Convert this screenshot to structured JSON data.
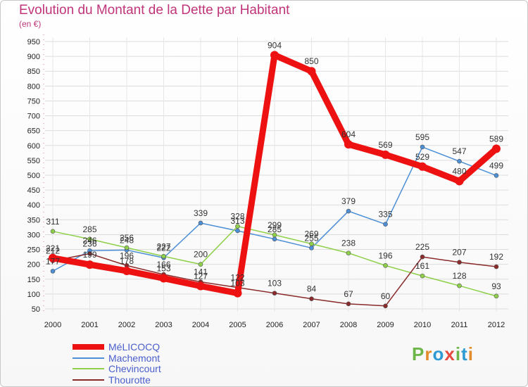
{
  "title": "Evolution du Montant de la Dette par Habitant",
  "subtitle": "(en €)",
  "logo": [
    "P",
    "r",
    "o",
    "x",
    "i",
    "t",
    "i"
  ],
  "logo_colors": [
    "#6fb64a",
    "#e38c2c",
    "#2e9ad4",
    "#e64a3e",
    "#6fb64a",
    "#2e9ad4",
    "#e38c2c"
  ],
  "chart_data": {
    "type": "line",
    "title": "Evolution du Montant de la Dette par Habitant",
    "ylabel": "(en €)",
    "xlabel": "",
    "categories": [
      "2000",
      "2001",
      "2002",
      "2003",
      "2004",
      "2005",
      "2006",
      "2007",
      "2008",
      "2009",
      "2010",
      "2011",
      "2012"
    ],
    "yticks": [
      50,
      100,
      150,
      200,
      250,
      300,
      350,
      400,
      450,
      500,
      550,
      600,
      650,
      700,
      750,
      800,
      850,
      900,
      950
    ],
    "ylim": [
      50,
      950
    ],
    "grid": true,
    "legend_position": "bottom-left",
    "series": [
      {
        "name": "MéLICOCQ",
        "color": "#ee1111",
        "values": [
          221,
          199,
          178,
          153,
          127,
          103,
          904,
          850,
          604,
          569,
          529,
          480,
          589
        ],
        "labels": [
          "221",
          "199",
          "178",
          "153",
          "127",
          "103",
          "904",
          "850",
          "604",
          "569",
          "529",
          "480",
          "589"
        ]
      },
      {
        "name": "Machemont",
        "color": "#4c8fd6",
        "values": [
          177,
          246,
          248,
          222,
          339,
          313,
          285,
          255,
          379,
          335,
          595,
          547,
          499
        ],
        "labels": [
          "177",
          "246",
          "248",
          "222",
          "339",
          "313",
          "285",
          "255",
          "379",
          "335",
          "595",
          "547",
          "499"
        ]
      },
      {
        "name": "Chevincourt",
        "color": "#8ed04a",
        "values": [
          311,
          285,
          256,
          227,
          200,
          328,
          299,
          269,
          238,
          196,
          161,
          128,
          93
        ],
        "labels": [
          "311",
          "285",
          "256",
          "227",
          "200",
          "328",
          "299",
          "269",
          "238",
          "196",
          "161",
          "128",
          "93"
        ]
      },
      {
        "name": "Thourotte",
        "color": "#8a2a2a",
        "values": [
          212,
          236,
          196,
          166,
          141,
          122,
          103,
          84,
          67,
          60,
          225,
          207,
          192
        ],
        "labels": [
          "212",
          "236",
          "196",
          "166",
          "141",
          "122",
          "103",
          "84",
          "67",
          "60",
          "225",
          "207",
          "192"
        ]
      }
    ]
  }
}
